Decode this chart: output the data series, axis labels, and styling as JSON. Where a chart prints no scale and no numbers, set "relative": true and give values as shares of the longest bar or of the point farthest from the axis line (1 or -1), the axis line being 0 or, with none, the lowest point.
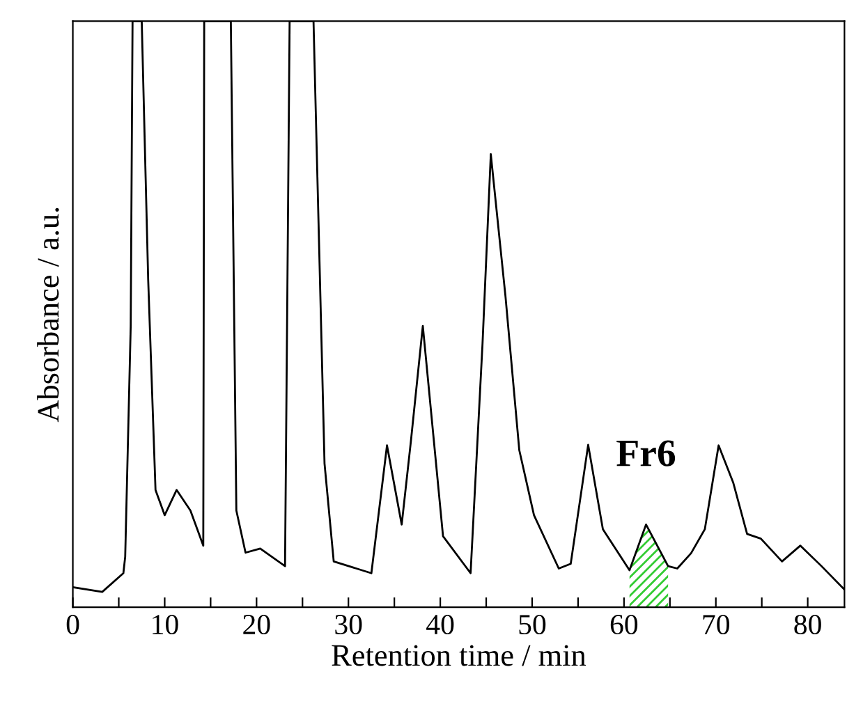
{
  "chart_data": {
    "type": "line",
    "relative": true,
    "xlabel": "Retention time / min",
    "ylabel": "Absorbance / a.u.",
    "x": [
      0,
      3.2,
      5.5,
      5.7,
      6.3,
      6.5,
      7.5,
      8.2,
      9.0,
      10.0,
      11.3,
      12.8,
      14.2,
      14.3,
      17.2,
      17.8,
      18.8,
      20.4,
      23.1,
      23.6,
      26.2,
      27.4,
      28.4,
      32.5,
      34.2,
      35.8,
      36.8,
      38.1,
      40.3,
      43.3,
      44.6,
      45.5,
      47.1,
      48.6,
      50.2,
      52.9,
      54.2,
      56.1,
      57.7,
      60.6,
      62.4,
      64.8,
      65.8,
      67.3,
      68.8,
      70.3,
      71.9,
      73.4,
      74.9,
      77.2,
      79.2,
      81.5,
      84.0
    ],
    "series": [
      {
        "color": "#000000",
        "values": [
          0.034,
          0.026,
          0.058,
          0.086,
          0.48,
          1,
          1,
          0.56,
          0.2,
          0.157,
          0.2,
          0.165,
          0.105,
          1,
          1,
          0.165,
          0.093,
          0.1,
          0.07,
          1,
          1,
          0.245,
          0.078,
          0.058,
          0.276,
          0.141,
          0.283,
          0.48,
          0.121,
          0.058,
          0.45,
          0.773,
          0.53,
          0.268,
          0.157,
          0.066,
          0.074,
          0.277,
          0.133,
          0.063,
          0.141,
          0.07,
          0.066,
          0.092,
          0.133,
          0.276,
          0.212,
          0.125,
          0.117,
          0.078,
          0.105,
          0.07,
          0.03
        ]
      },
      {
        "type": "area",
        "color": "#33cc33",
        "x": [
          60.6,
          62.4,
          64.8
        ],
        "values": [
          0.063,
          0.141,
          0.07
        ]
      }
    ],
    "xlim": [
      0,
      84
    ],
    "xticks": [
      0,
      {
        "value": 5,
        "label": null
      },
      10,
      {
        "value": 15,
        "label": null
      },
      20,
      {
        "value": 25,
        "label": null
      },
      30,
      {
        "value": 35,
        "label": null
      },
      40,
      {
        "value": 45,
        "label": null
      },
      50,
      {
        "value": 55,
        "label": null
      },
      60,
      {
        "value": 65,
        "label": null
      },
      70,
      {
        "value": 75,
        "label": null
      },
      80
    ],
    "tick_labels": "x",
    "annotations": [
      "Fr6"
    ],
    "marker": "none",
    "line_style": "solid"
  }
}
